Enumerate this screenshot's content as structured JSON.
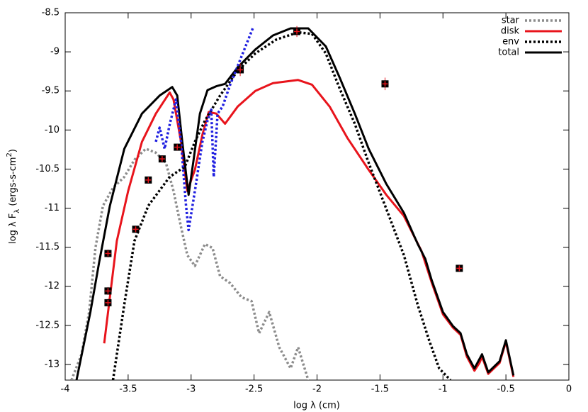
{
  "chart_data": {
    "type": "line",
    "x_label": "log λ (cm)",
    "y_label": [
      "log λ F",
      "λ",
      " (ergs-s-cm",
      "2",
      ")"
    ],
    "xlim": [
      -4,
      0
    ],
    "ylim": [
      -13.2,
      -8.5
    ],
    "xticks": [
      -4,
      -3.5,
      -3,
      -2.5,
      -2,
      -1.5,
      -1,
      -0.5,
      0
    ],
    "yticks": [
      -8.5,
      -9,
      -9.5,
      -10,
      -10.5,
      -11,
      -11.5,
      -12,
      -12.5,
      -13
    ],
    "grid": false,
    "legend": "upper right",
    "series": [
      {
        "name": "star",
        "color": "#8c8c8c",
        "dash": "dotted",
        "x": [
          -3.95,
          -3.87,
          -3.81,
          -3.76,
          -3.7,
          -3.62,
          -3.53,
          -3.45,
          -3.36,
          -3.28,
          -3.2,
          -3.14,
          -3.08,
          -3.03,
          -2.97,
          -2.89,
          -2.83,
          -2.77,
          -2.69,
          -2.6,
          -2.52,
          -2.46,
          -2.38,
          -2.3,
          -2.21,
          -2.15,
          -2.07
        ],
        "values": [
          -13.2,
          -12.87,
          -12.33,
          -11.51,
          -10.97,
          -10.74,
          -10.6,
          -10.38,
          -10.24,
          -10.29,
          -10.42,
          -10.78,
          -11.24,
          -11.6,
          -11.74,
          -11.46,
          -11.51,
          -11.87,
          -11.96,
          -12.14,
          -12.19,
          -12.6,
          -12.33,
          -12.78,
          -13.05,
          -12.78,
          -13.2
        ]
      },
      {
        "name": "disk",
        "color": "#e8141c",
        "dash": "solid",
        "x": [
          -3.69,
          -3.645,
          -3.59,
          -3.5,
          -3.39,
          -3.28,
          -3.17,
          -3.14,
          -3.08,
          -3.03,
          -2.97,
          -2.91,
          -2.86,
          -2.8,
          -2.73,
          -2.63,
          -2.49,
          -2.35,
          -2.15,
          -2.04,
          -1.9,
          -1.76,
          -1.59,
          -1.45,
          -1.31,
          -1.17,
          -1.09,
          -1.0,
          -0.92,
          -0.86,
          -0.81,
          -0.75,
          -0.71,
          -0.69,
          -0.64,
          -0.55,
          -0.5,
          -0.44
        ],
        "values": [
          -12.73,
          -12.14,
          -11.42,
          -10.78,
          -10.15,
          -9.79,
          -9.52,
          -9.61,
          -10.15,
          -10.78,
          -10.51,
          -10.06,
          -9.77,
          -9.79,
          -9.92,
          -9.7,
          -9.5,
          -9.4,
          -9.36,
          -9.42,
          -9.7,
          -10.1,
          -10.51,
          -10.83,
          -11.1,
          -11.55,
          -11.95,
          -12.36,
          -12.53,
          -12.62,
          -12.9,
          -13.08,
          -12.98,
          -12.9,
          -13.12,
          -12.98,
          -12.71,
          -13.16
        ]
      },
      {
        "name": "env",
        "color": "#000000",
        "dash": "dotted",
        "x": [
          -3.62,
          -3.53,
          -3.45,
          -3.34,
          -3.17,
          -3.05,
          -2.97,
          -2.89,
          -2.77,
          -2.63,
          -2.49,
          -2.32,
          -2.15,
          -2.04,
          -1.93,
          -1.82,
          -1.7,
          -1.59,
          -1.45,
          -1.31,
          -1.2,
          -1.11,
          -1.03,
          -0.94
        ],
        "values": [
          -13.2,
          -12.23,
          -11.42,
          -10.97,
          -10.6,
          -10.47,
          -10.15,
          -9.88,
          -9.56,
          -9.24,
          -9.02,
          -8.84,
          -8.75,
          -8.77,
          -9.02,
          -9.47,
          -9.92,
          -10.42,
          -11.01,
          -11.6,
          -12.24,
          -12.69,
          -13.05,
          -13.2
        ]
      },
      {
        "name": "total",
        "color": "#000000",
        "dash": "solid",
        "x": [
          -3.91,
          -3.8,
          -3.73,
          -3.645,
          -3.53,
          -3.39,
          -3.25,
          -3.15,
          -3.11,
          -3.07,
          -3.02,
          -2.98,
          -2.93,
          -2.87,
          -2.8,
          -2.73,
          -2.63,
          -2.49,
          -2.35,
          -2.21,
          -2.07,
          -1.93,
          -1.82,
          -1.7,
          -1.59,
          -1.45,
          -1.31,
          -1.2,
          -1.14,
          -1.09,
          -1.0,
          -0.92,
          -0.86,
          -0.81,
          -0.75,
          -0.69,
          -0.64,
          -0.55,
          -0.5,
          -0.44
        ],
        "values": [
          -13.2,
          -12.33,
          -11.69,
          -10.97,
          -10.24,
          -9.79,
          -9.56,
          -9.45,
          -9.56,
          -10.15,
          -10.83,
          -10.38,
          -9.79,
          -9.49,
          -9.44,
          -9.41,
          -9.2,
          -8.97,
          -8.79,
          -8.7,
          -8.7,
          -8.93,
          -9.33,
          -9.79,
          -10.24,
          -10.69,
          -11.06,
          -11.46,
          -11.65,
          -11.92,
          -12.33,
          -12.51,
          -12.6,
          -12.87,
          -13.05,
          -12.87,
          -13.1,
          -12.96,
          -12.69,
          -13.14
        ]
      },
      {
        "color": "#1f1fe0",
        "dash": "dotted",
        "x": [
          -3.28,
          -3.25,
          -3.21,
          -3.17,
          -3.12,
          -3.08,
          -3.04,
          -3.02,
          -2.97,
          -2.91,
          -2.87,
          -2.84,
          -2.82,
          -2.79,
          -2.75,
          -2.69,
          -2.6,
          -2.51
        ],
        "values": [
          -10.15,
          -9.97,
          -10.24,
          -9.93,
          -9.61,
          -10.15,
          -10.97,
          -11.28,
          -10.78,
          -10.15,
          -9.88,
          -9.74,
          -10.6,
          -9.79,
          -9.7,
          -9.42,
          -9.06,
          -8.7
        ]
      }
    ],
    "points": {
      "color": "#e8141c",
      "x": [
        -3.66,
        -3.66,
        -3.66,
        -3.44,
        -3.34,
        -3.23,
        -3.11,
        -2.61,
        -2.16,
        -1.46,
        -0.87
      ],
      "values": [
        -11.58,
        -12.06,
        -12.21,
        -11.27,
        -10.64,
        -10.37,
        -10.22,
        -9.23,
        -8.74,
        -9.41,
        -11.77
      ],
      "errors": [
        0.05,
        0.05,
        0.05,
        0.04,
        0.04,
        0.04,
        0.04,
        0.08,
        0.07,
        0.08,
        0.04
      ]
    }
  }
}
